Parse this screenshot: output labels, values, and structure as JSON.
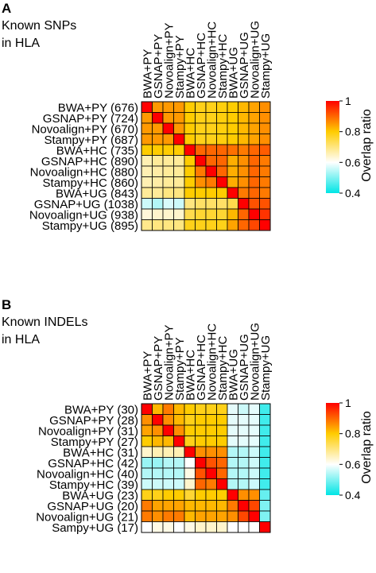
{
  "chart_data": [
    {
      "type": "heatmap",
      "panel_letter": "A",
      "title_lines": [
        "Known SNPs",
        "in HLA"
      ],
      "column_labels": [
        "BWA+PY",
        "GSNAP+PY",
        "Novoalign+PY",
        "Stampy+PY",
        "BWA+HC",
        "GSNAP+HC",
        "Novoalign+HC",
        "Stampy+HC",
        "BWA+UG",
        "GSNAP+UG",
        "Novoalign+UG",
        "Stampy+UG"
      ],
      "row_labels": [
        "BWA+PY (676)",
        "GSNAP+PY (724)",
        "Novoalign+PY (670)",
        "Stampy+PY (687)",
        "BWA+HC (735)",
        "GSNAP+HC (890)",
        "Novoalign+HC (880)",
        "Stampy+HC (860)",
        "BWA+UG (843)",
        "GSNAP+UG (1038)",
        "Novoalign+UG (938)",
        "Stampy+UG (895)"
      ],
      "values": [
        [
          1.0,
          0.85,
          0.85,
          0.85,
          0.8,
          0.78,
          0.78,
          0.79,
          0.8,
          0.82,
          0.84,
          0.86
        ],
        [
          0.85,
          1.0,
          0.85,
          0.85,
          0.8,
          0.78,
          0.78,
          0.79,
          0.8,
          0.82,
          0.84,
          0.86
        ],
        [
          0.85,
          0.85,
          1.0,
          0.85,
          0.8,
          0.78,
          0.78,
          0.79,
          0.8,
          0.82,
          0.84,
          0.86
        ],
        [
          0.85,
          0.85,
          0.85,
          1.0,
          0.8,
          0.78,
          0.78,
          0.79,
          0.8,
          0.82,
          0.84,
          0.86
        ],
        [
          0.8,
          0.8,
          0.8,
          0.8,
          1.0,
          0.9,
          0.9,
          0.9,
          0.89,
          0.88,
          0.9,
          0.91
        ],
        [
          0.66,
          0.68,
          0.68,
          0.68,
          0.8,
          1.0,
          0.9,
          0.9,
          0.83,
          0.86,
          0.9,
          0.88
        ],
        [
          0.66,
          0.67,
          0.68,
          0.68,
          0.8,
          0.88,
          1.0,
          0.9,
          0.83,
          0.86,
          0.9,
          0.88
        ],
        [
          0.66,
          0.67,
          0.68,
          0.68,
          0.8,
          0.86,
          0.88,
          1.0,
          0.83,
          0.86,
          0.9,
          0.88
        ],
        [
          0.68,
          0.68,
          0.7,
          0.7,
          0.8,
          0.8,
          0.8,
          0.8,
          1.0,
          0.88,
          0.9,
          0.88
        ],
        [
          0.56,
          0.54,
          0.57,
          0.56,
          0.7,
          0.72,
          0.72,
          0.72,
          0.74,
          1.0,
          0.92,
          0.92
        ],
        [
          0.63,
          0.64,
          0.64,
          0.64,
          0.74,
          0.76,
          0.76,
          0.76,
          0.82,
          0.9,
          1.0,
          0.95
        ],
        [
          0.69,
          0.7,
          0.7,
          0.7,
          0.78,
          0.78,
          0.78,
          0.78,
          0.84,
          0.9,
          0.93,
          1.0
        ]
      ]
    },
    {
      "type": "heatmap",
      "panel_letter": "B",
      "title_lines": [
        "Known INDELs",
        "in HLA"
      ],
      "column_labels": [
        "BWA+PY",
        "GSNAP+PY",
        "Novoalign+PY",
        "Stampy+PY",
        "BWA+HC",
        "GSNAP+HC",
        "Novoalign+HC",
        "Stampy+HC",
        "BWA+UG",
        "GSNAP+UG",
        "Novoalign+UG",
        "Stampy+UG"
      ],
      "row_labels": [
        "BWA+PY (30)",
        "GSNAP+PY (28)",
        "Novoalign+PY (31)",
        "Stampy+PY (27)",
        "BWA+HC (31)",
        "GSNAP+HC (42)",
        "Novoalign+HC (40)",
        "Stampy+HC (39)",
        "BWA+UG (23)",
        "GSNAP+UG (20)",
        "Novoalign+UG (21)",
        "Sampy+UG (17)"
      ],
      "values": [
        [
          1.0,
          0.82,
          0.88,
          0.82,
          0.8,
          0.78,
          0.78,
          0.78,
          0.58,
          0.56,
          0.58,
          0.45
        ],
        [
          0.86,
          1.0,
          0.86,
          0.82,
          0.78,
          0.8,
          0.8,
          0.8,
          0.58,
          0.58,
          0.58,
          0.45
        ],
        [
          0.84,
          0.86,
          1.0,
          0.86,
          0.8,
          0.8,
          0.8,
          0.8,
          0.58,
          0.58,
          0.58,
          0.45
        ],
        [
          0.8,
          0.82,
          0.82,
          1.0,
          0.78,
          0.8,
          0.8,
          0.8,
          0.58,
          0.58,
          0.58,
          0.45
        ],
        [
          0.64,
          0.66,
          0.66,
          0.66,
          1.0,
          0.86,
          0.86,
          0.86,
          0.54,
          0.54,
          0.56,
          0.45
        ],
        [
          0.52,
          0.52,
          0.54,
          0.54,
          0.6,
          1.0,
          0.92,
          0.9,
          0.54,
          0.54,
          0.56,
          0.45
        ],
        [
          0.54,
          0.54,
          0.54,
          0.54,
          0.62,
          0.92,
          1.0,
          0.9,
          0.54,
          0.54,
          0.56,
          0.45
        ],
        [
          0.56,
          0.56,
          0.56,
          0.56,
          0.64,
          0.9,
          0.88,
          1.0,
          0.54,
          0.54,
          0.56,
          0.45
        ],
        [
          0.78,
          0.78,
          0.8,
          0.8,
          0.76,
          0.8,
          0.8,
          0.8,
          1.0,
          0.86,
          0.86,
          0.48
        ],
        [
          0.88,
          0.84,
          0.84,
          0.84,
          0.82,
          0.82,
          0.82,
          0.82,
          0.88,
          1.0,
          0.93,
          0.5
        ],
        [
          0.88,
          0.86,
          0.88,
          0.88,
          0.82,
          0.84,
          0.84,
          0.84,
          0.86,
          0.93,
          1.0,
          0.5
        ],
        [
          0.6,
          0.62,
          0.62,
          0.6,
          0.62,
          0.64,
          0.64,
          0.64,
          0.6,
          0.6,
          0.6,
          1.0
        ]
      ]
    }
  ],
  "colorbar": {
    "label": "Overlap ratio",
    "ticks": [
      1,
      0.8,
      0.6,
      0.4
    ],
    "vmin": 0.4,
    "vmax": 1.0,
    "stops": [
      "#00e5e5",
      "#ffffff",
      "#ffcc00",
      "#ff0000"
    ]
  }
}
